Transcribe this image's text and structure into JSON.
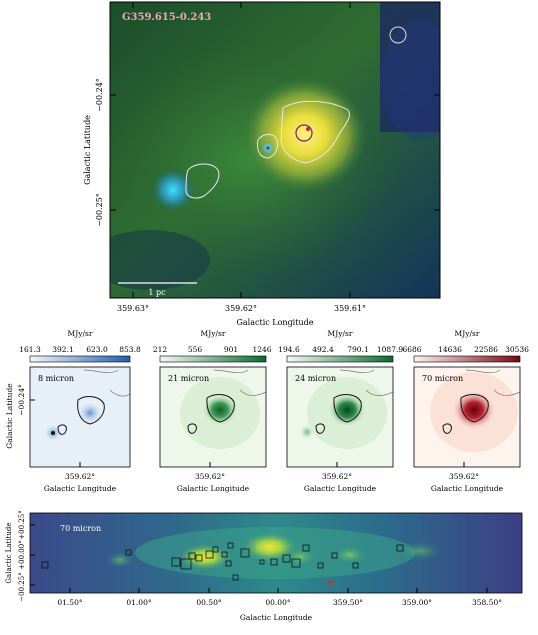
{
  "main_panel": {
    "source_label": "G359.615-0.243",
    "scale_bar_label": "1 pc",
    "xlabel": "Galactic Longitude",
    "ylabel": "Galactic Latitude",
    "xticks": [
      "359.63°",
      "359.62°",
      "359.61°"
    ],
    "yticks": [
      "−00.24°",
      "−00.25°"
    ]
  },
  "small_panels": [
    {
      "label": "8 micron",
      "colorbar_unit": "MJy/sr",
      "colorbar_ticks": [
        "161.3",
        "392.1",
        "623.0",
        "853.8"
      ],
      "colorbar_colors": [
        "#f4f8fd",
        "#1f5fae"
      ],
      "xtick": "359.62°",
      "xlabel": "Galactic Longitude"
    },
    {
      "label": "21 micron",
      "colorbar_unit": "MJy/sr",
      "colorbar_ticks": [
        "212",
        "556",
        "901",
        "1246"
      ],
      "colorbar_colors": [
        "#f6fbf3",
        "#0b6a2e"
      ],
      "xtick": "359.62°",
      "xlabel": "Galactic Longitude"
    },
    {
      "label": "24 micron",
      "colorbar_unit": "MJy/sr",
      "colorbar_ticks": [
        "194.6",
        "492.4",
        "790.1",
        "1087.9"
      ],
      "colorbar_colors": [
        "#f6fbf3",
        "#0b6a2e"
      ],
      "xtick": "359.62°",
      "xlabel": "Galactic Longitude"
    },
    {
      "label": "70 micron",
      "colorbar_unit": "MJy/sr",
      "colorbar_ticks": [
        "6686",
        "14636",
        "22586",
        "30536"
      ],
      "colorbar_colors": [
        "#fff4ef",
        "#7a0612"
      ],
      "xtick": "359.62°",
      "xlabel": "Galactic Longitude"
    }
  ],
  "small_ylabel": "Galactic Latitude",
  "small_ytick": "−00.24°",
  "bottom_panel": {
    "label": "70 micron",
    "xlabel": "Galactic Longitude",
    "ylabel": "Galactic Latitude",
    "xticks": [
      "01.50°",
      "01.00°",
      "00.50°",
      "00.00°",
      "359.50°",
      "359.00°",
      "358.50°"
    ],
    "yticks": [
      "+00.25°",
      "+00.00°",
      "−00.25°"
    ]
  }
}
